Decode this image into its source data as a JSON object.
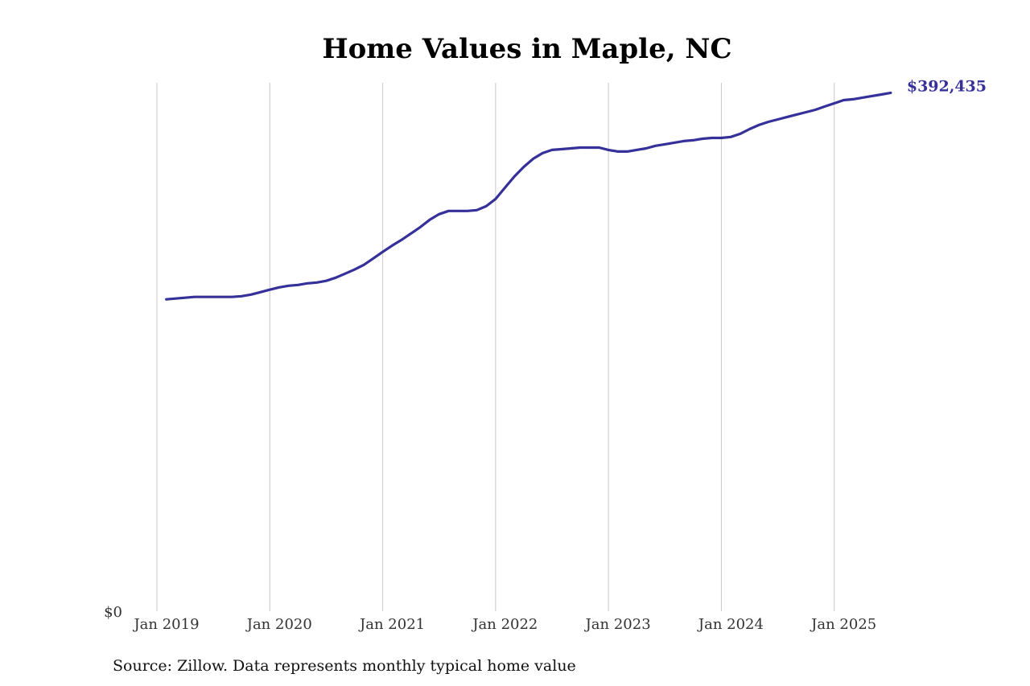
{
  "chart_data": {
    "type": "line",
    "title": "Home Values in Maple, NC",
    "source": "Source: Zillow. Data represents monthly typical home value",
    "color": "#35309a",
    "x": [
      "2019-02",
      "2019-03",
      "2019-04",
      "2019-05",
      "2019-06",
      "2019-07",
      "2019-08",
      "2019-09",
      "2019-10",
      "2019-11",
      "2019-12",
      "2020-01",
      "2020-02",
      "2020-03",
      "2020-04",
      "2020-05",
      "2020-06",
      "2020-07",
      "2020-08",
      "2020-09",
      "2020-10",
      "2020-11",
      "2020-12",
      "2021-01",
      "2021-02",
      "2021-03",
      "2021-04",
      "2021-05",
      "2021-06",
      "2021-07",
      "2021-08",
      "2021-09",
      "2021-10",
      "2021-11",
      "2021-12",
      "2022-01",
      "2022-02",
      "2022-03",
      "2022-04",
      "2022-05",
      "2022-06",
      "2022-07",
      "2022-08",
      "2022-09",
      "2022-10",
      "2022-11",
      "2022-12",
      "2023-01",
      "2023-02",
      "2023-03",
      "2023-04",
      "2023-05",
      "2023-06",
      "2023-07",
      "2023-08",
      "2023-09",
      "2023-10",
      "2023-11",
      "2023-12",
      "2024-01",
      "2024-02",
      "2024-03",
      "2024-04",
      "2024-05",
      "2024-06",
      "2024-07",
      "2024-08",
      "2024-09",
      "2024-10",
      "2024-11",
      "2024-12",
      "2025-01",
      "2025-02",
      "2025-03",
      "2025-04",
      "2025-05",
      "2025-06",
      "2025-07"
    ],
    "values": [
      236100,
      236700,
      237300,
      237900,
      237900,
      237900,
      237900,
      237900,
      238500,
      239700,
      241500,
      243400,
      245200,
      246400,
      247000,
      248200,
      248800,
      250100,
      252500,
      255500,
      258600,
      262200,
      267100,
      272000,
      276800,
      281100,
      285900,
      290800,
      296300,
      300600,
      303000,
      303000,
      303000,
      303600,
      306600,
      312100,
      320600,
      329100,
      336400,
      342500,
      346800,
      349200,
      349800,
      350400,
      351000,
      351000,
      351000,
      349200,
      348000,
      348000,
      349200,
      350400,
      352300,
      353500,
      354700,
      355900,
      356500,
      357700,
      358300,
      358300,
      359000,
      361400,
      365000,
      368100,
      370500,
      372300,
      374200,
      376000,
      377800,
      379600,
      382100,
      384500,
      386900,
      387600,
      388800,
      390000,
      391200,
      392435
    ],
    "value_labels": [
      null,
      null,
      null,
      null,
      null,
      null,
      null,
      null,
      null,
      null,
      null,
      null,
      null,
      null,
      null,
      null,
      null,
      null,
      null,
      null,
      null,
      null,
      null,
      null,
      null,
      null,
      null,
      null,
      null,
      null,
      null,
      null,
      null,
      null,
      null,
      null,
      null,
      null,
      null,
      null,
      null,
      null,
      null,
      null,
      null,
      null,
      null,
      null,
      null,
      null,
      null,
      null,
      null,
      null,
      null,
      null,
      null,
      null,
      null,
      null,
      null,
      null,
      null,
      null,
      null,
      null,
      null,
      null,
      null,
      null,
      null,
      null,
      null,
      null,
      null,
      null,
      null,
      "$392,435"
    ],
    "xlim": [
      "2019-01",
      "2026-01"
    ],
    "xticks": [
      {
        "value": "2019-01",
        "label": "Jan 2019"
      },
      {
        "value": "2020-01",
        "label": "Jan 2020"
      },
      {
        "value": "2021-01",
        "label": "Jan 2021"
      },
      {
        "value": "2022-01",
        "label": "Jan 2022"
      },
      {
        "value": "2023-01",
        "label": "Jan 2023"
      },
      {
        "value": "2024-01",
        "label": "Jan 2024"
      },
      {
        "value": "2025-01",
        "label": "Jan 2025"
      }
    ],
    "ylim": [
      0,
      400000
    ],
    "yticks": [
      {
        "value": 0,
        "label": "$0"
      }
    ],
    "grid": true
  }
}
